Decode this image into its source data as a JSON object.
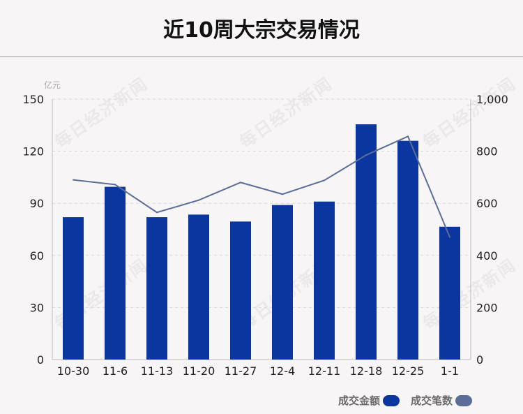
{
  "title": "近10周大宗交易情况",
  "watermark": "每日经济新闻",
  "colors": {
    "bar": "#0b36a0",
    "line": "#5a6e98",
    "grid": "#d9d9d9",
    "axis": "#bdbdbd"
  },
  "chart_data": {
    "type": "bar",
    "categories": [
      "10-30",
      "11-6",
      "11-13",
      "11-20",
      "11-27",
      "12-4",
      "12-11",
      "12-18",
      "12-25",
      "1-1"
    ],
    "series": [
      {
        "name": "成交金额",
        "type": "bar",
        "axis": "left",
        "values": [
          82,
          99.5,
          82,
          83.5,
          79.5,
          89,
          91,
          135.5,
          126,
          76.5
        ]
      },
      {
        "name": "成交笔数",
        "type": "line",
        "axis": "right",
        "values": [
          690,
          672,
          565,
          612,
          680,
          635,
          688,
          785,
          857,
          470
        ]
      }
    ],
    "ylabel_left": "亿元",
    "ylim_left": [
      0,
      150
    ],
    "yticks_left": [
      "0",
      "30",
      "60",
      "90",
      "120",
      "150"
    ],
    "ylim_right": [
      0,
      1000
    ],
    "yticks_right": [
      "0",
      "200",
      "400",
      "600",
      "800",
      "1,000"
    ],
    "grid": true,
    "legend": "bottom-right"
  }
}
